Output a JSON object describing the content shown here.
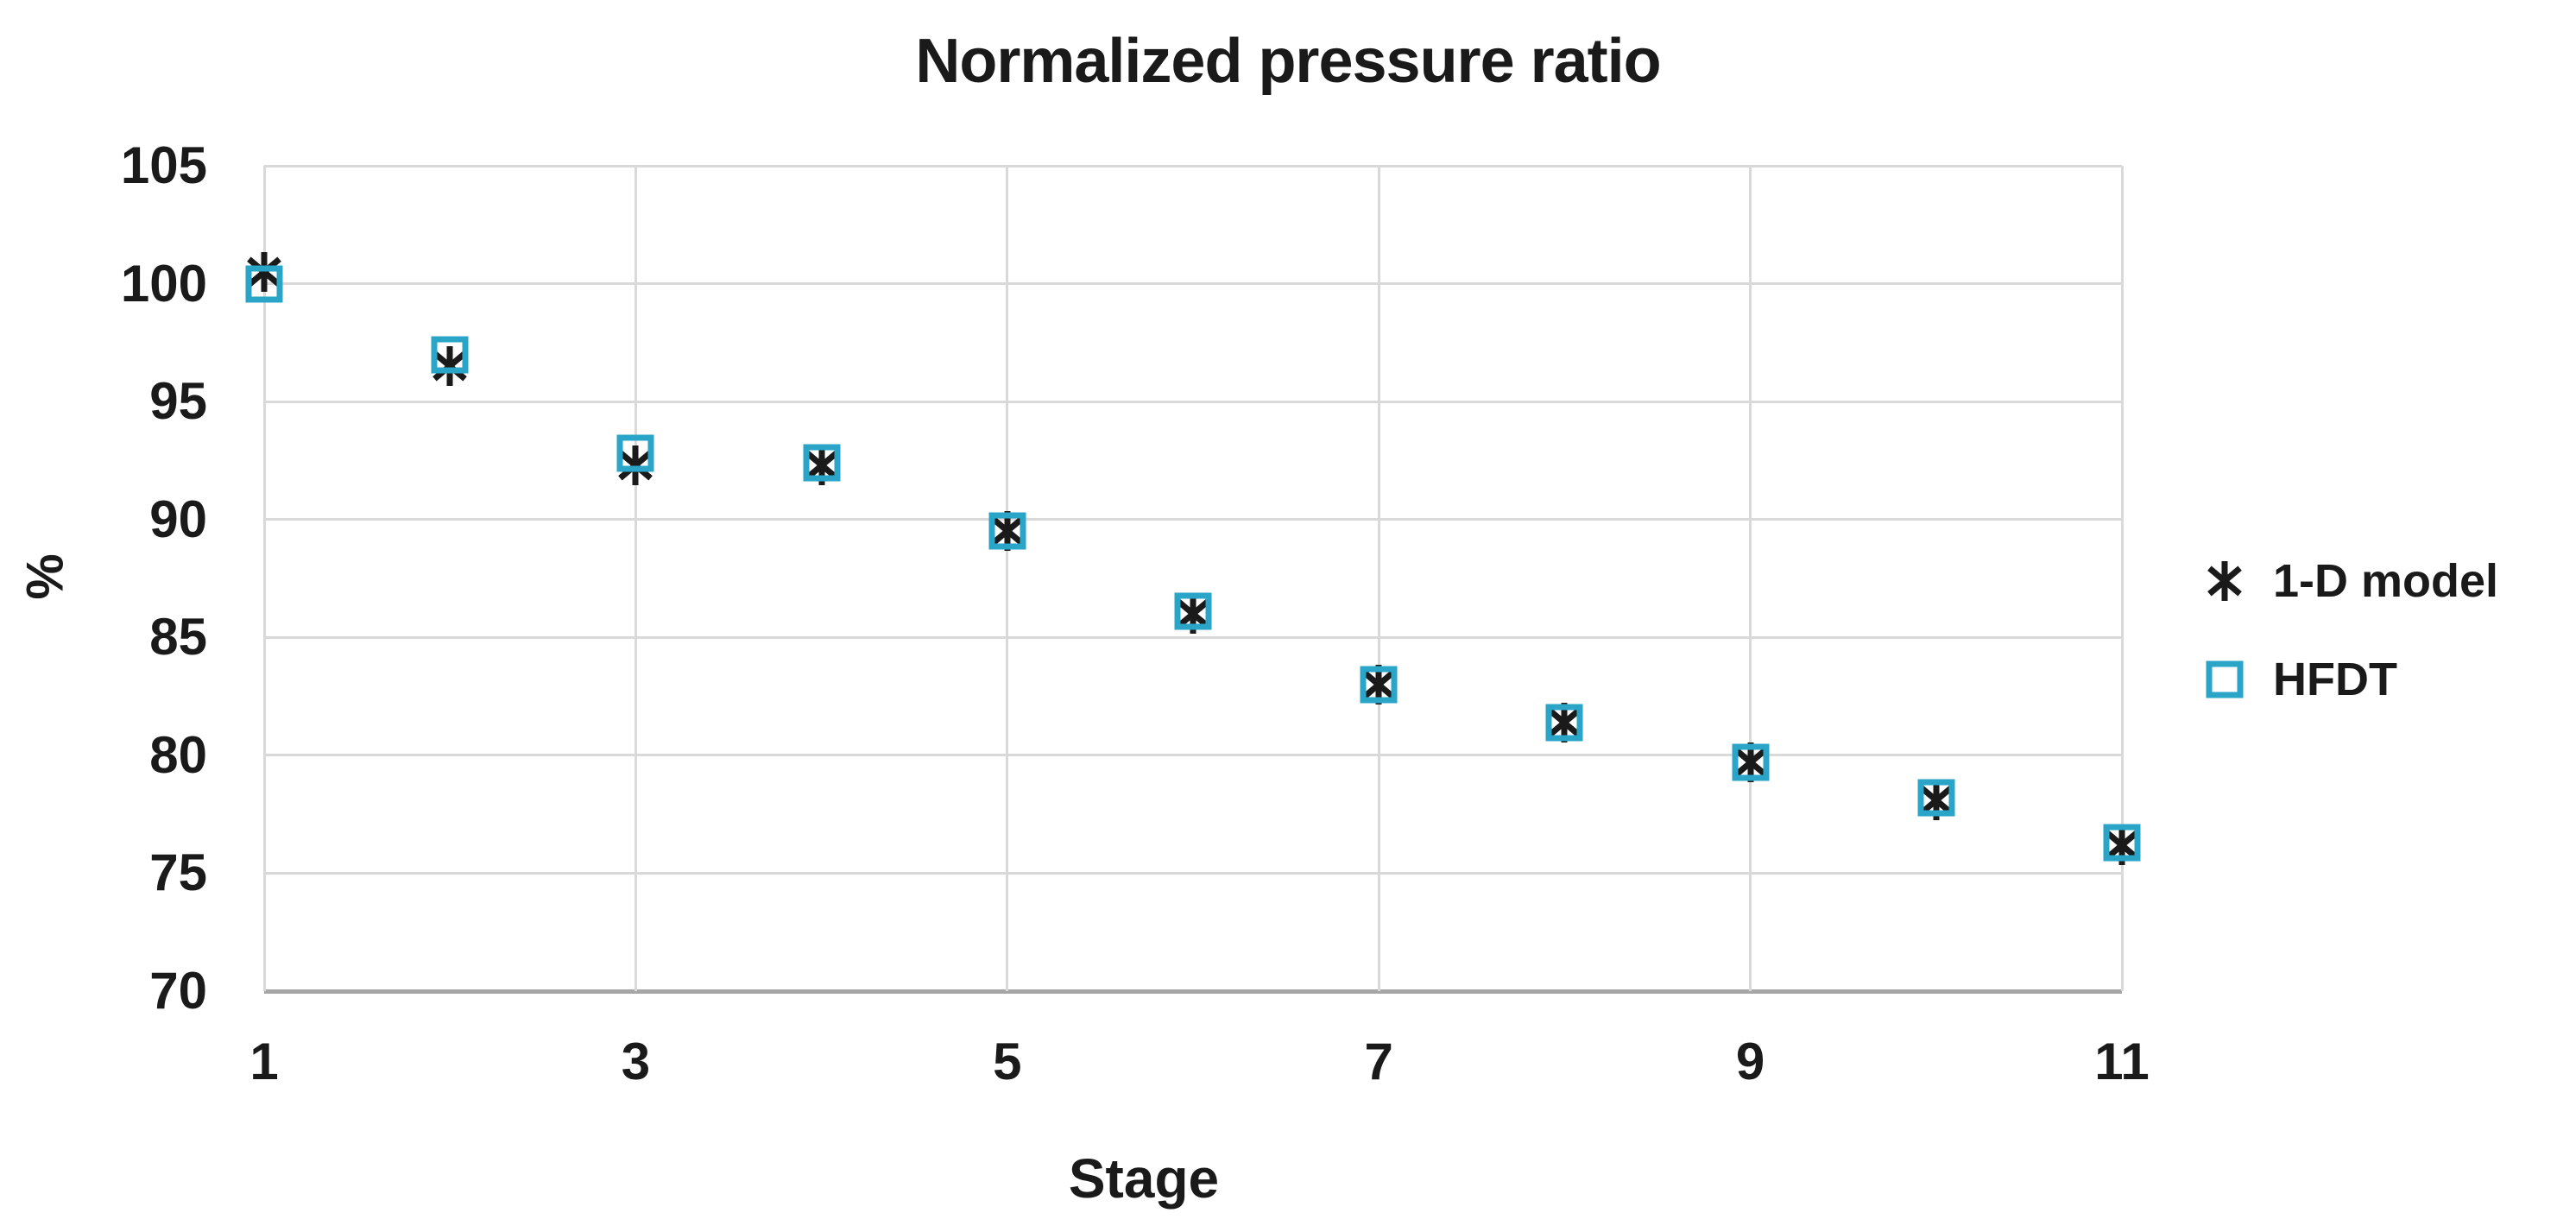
{
  "chart_data": {
    "type": "scatter",
    "title": "Normalized pressure ratio",
    "xlabel": "Stage",
    "ylabel": "%",
    "x": [
      1,
      2,
      3,
      4,
      5,
      6,
      7,
      8,
      9,
      10,
      11
    ],
    "series": [
      {
        "name": "1-D model",
        "marker": "asterisk",
        "color": "#1a1a1a",
        "values": [
          100.5,
          96.5,
          92.3,
          92.3,
          89.5,
          86.0,
          83.0,
          81.4,
          79.7,
          78.1,
          76.2
        ]
      },
      {
        "name": "HFDT",
        "marker": "open-square",
        "color": "#2aa5c8",
        "values": [
          100.0,
          97.0,
          92.8,
          92.4,
          89.5,
          86.1,
          83.0,
          81.4,
          79.7,
          78.2,
          76.3
        ]
      }
    ],
    "xlim": [
      1,
      11
    ],
    "ylim": [
      70,
      105
    ],
    "y_ticks": [
      105,
      100,
      95,
      90,
      85,
      80,
      75,
      70
    ],
    "x_ticks": [
      1,
      3,
      5,
      7,
      9,
      11
    ],
    "grid": true,
    "legend_position": "right",
    "grid_color": "#d9d9d9",
    "axis_line_color": "#a6a6a6",
    "text_color": "#1a1a1a",
    "background_color": "#ffffff"
  }
}
